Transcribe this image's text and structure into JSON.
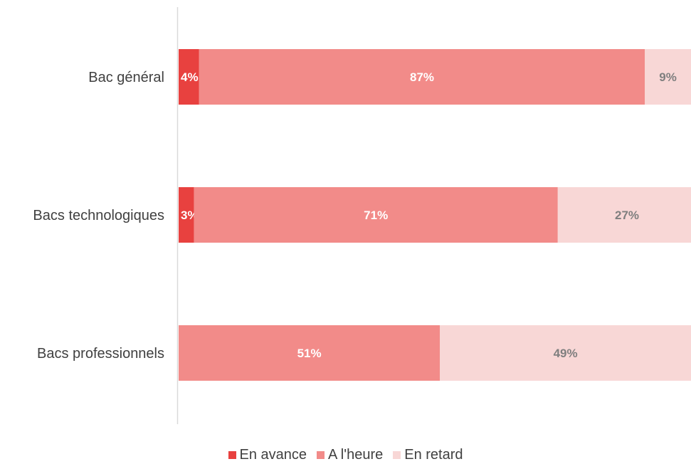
{
  "chart_data": {
    "type": "bar",
    "orientation": "horizontal",
    "stacked": true,
    "percent": true,
    "categories": [
      "Bac général",
      "Bacs technologiques",
      "Bacs professionnels"
    ],
    "series": [
      {
        "name": "En avance",
        "values": [
          4,
          3,
          0
        ],
        "color": "#e8413f",
        "label_color": "#ffffff"
      },
      {
        "name": "A l'heure",
        "values": [
          87,
          71,
          51
        ],
        "color": "#f28b89",
        "label_color": "#ffffff"
      },
      {
        "name": "En retard",
        "values": [
          9,
          27,
          49
        ],
        "color": "#f8d7d6",
        "label_color": "#7f7f7f"
      }
    ],
    "data_labels": [
      [
        "4%",
        "87%",
        "9%"
      ],
      [
        "3%",
        "71%",
        "27%"
      ],
      [
        "",
        "51%",
        "49%"
      ]
    ],
    "xlim": [
      0,
      100
    ],
    "grid": false,
    "legend_position": "bottom"
  }
}
